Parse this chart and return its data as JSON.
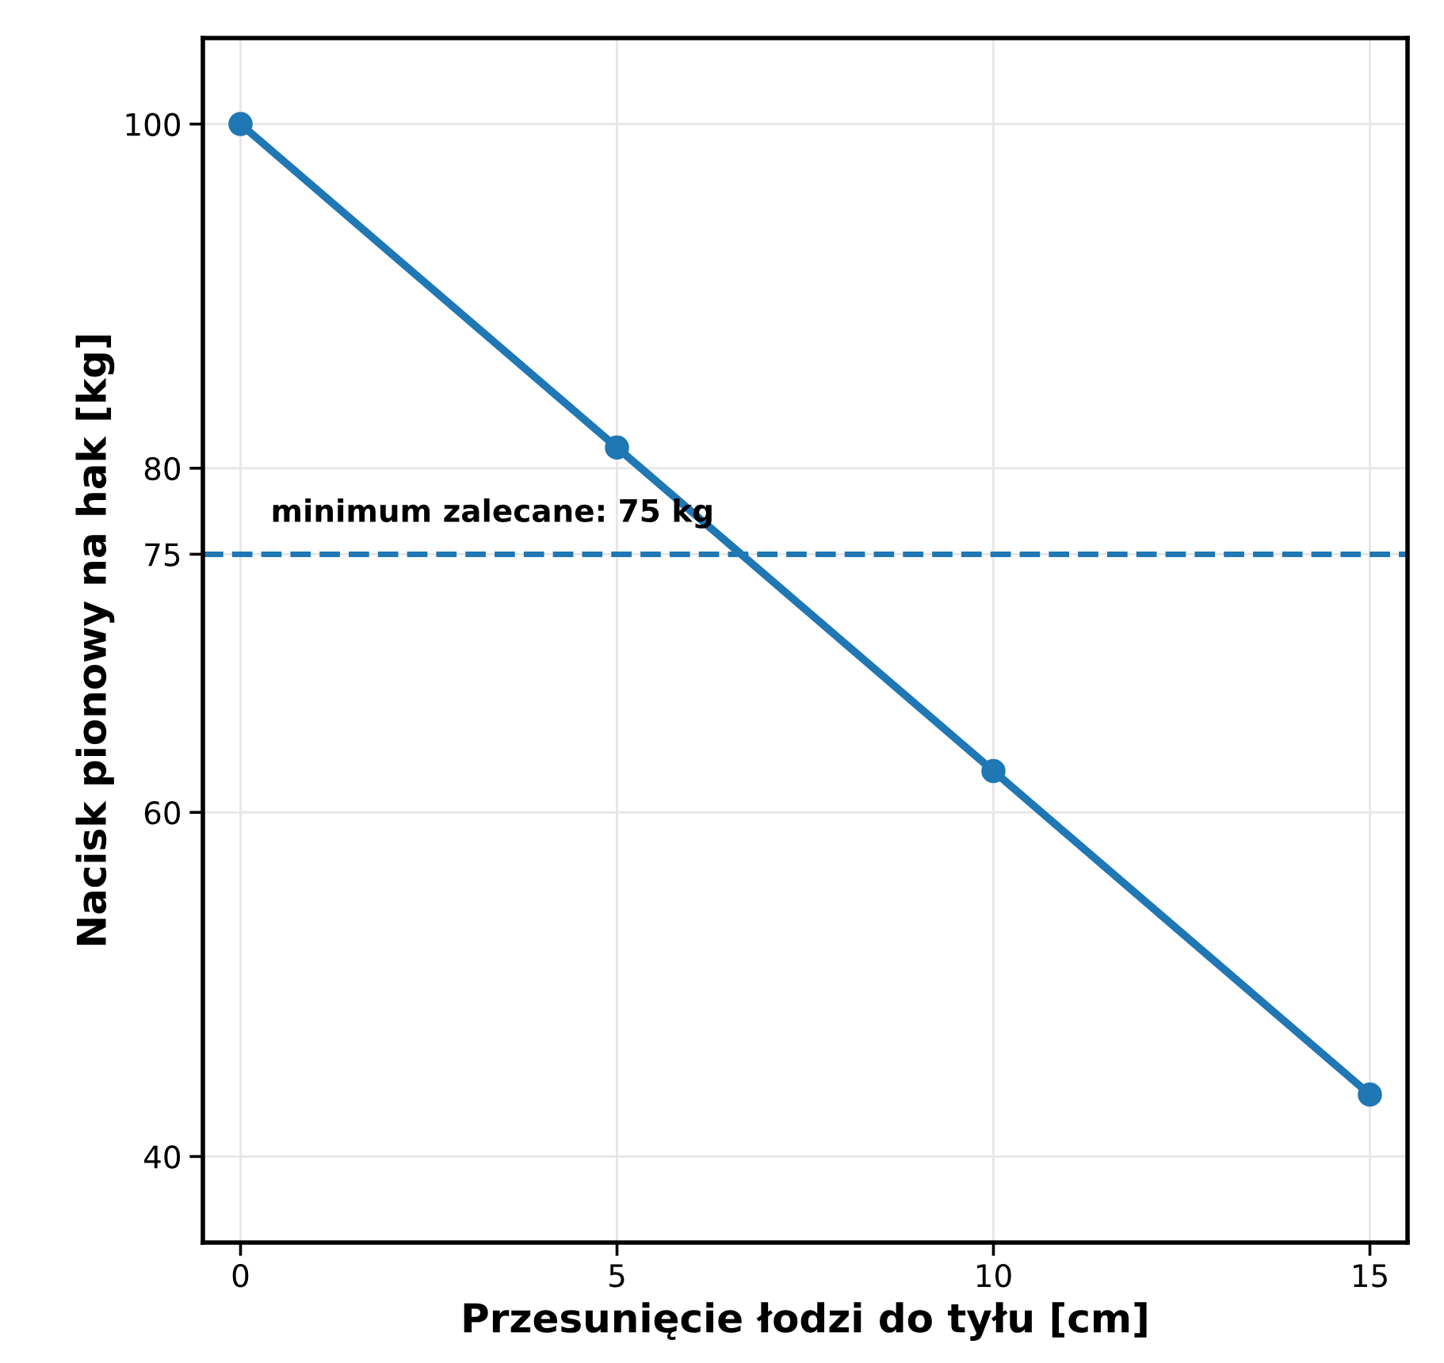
{
  "chart_data": {
    "type": "line",
    "xlabel": "Przesunięcie łodzi do tyłu [cm]",
    "ylabel": "Nacisk pionowy na hak [kg]",
    "x": [
      0,
      5,
      10,
      15
    ],
    "series": [
      {
        "color": "#1f77b4",
        "values": [
          100,
          81.2,
          62.4,
          43.6
        ]
      }
    ],
    "xlim": [
      -0.5,
      15.5
    ],
    "xticks": [
      0,
      5,
      10,
      15
    ],
    "ylim": [
      35,
      105
    ],
    "yticks": [
      40,
      60,
      75,
      80,
      100
    ],
    "ref_lines": [
      {
        "axis": "y",
        "value": 75,
        "label": "minimum zalecane: 75 kg",
        "color": "#1f77b4",
        "line_style": "dashed"
      }
    ],
    "grid": true,
    "marker": "circle",
    "line_style": "solid"
  }
}
